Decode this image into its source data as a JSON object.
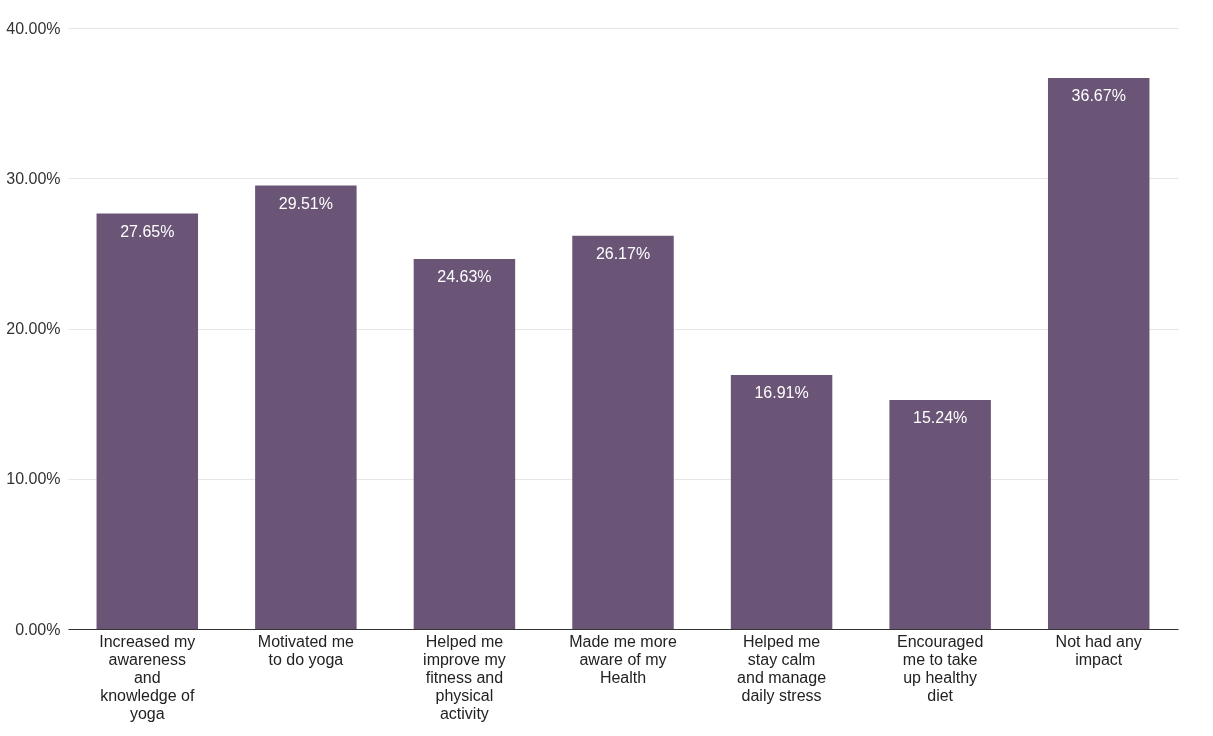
{
  "chart_data": {
    "type": "bar",
    "categories": [
      "Increased my awareness and knowledge of yoga",
      "Motivated me to do yoga",
      "Helped me improve my fitness and physical activity",
      "Made me more aware of my Health",
      "Helped me stay calm and manage daily stress",
      "Encouraged me to take up healthy diet",
      "Not had any impact"
    ],
    "values": [
      27.65,
      29.51,
      24.63,
      26.17,
      16.91,
      15.24,
      36.67
    ],
    "value_labels": [
      "27.65%",
      "29.51%",
      "24.63%",
      "26.17%",
      "16.91%",
      "15.24%",
      "36.67%"
    ],
    "color": "#6b5577",
    "ylim": [
      0,
      40
    ],
    "yticks": [
      {
        "value": 0,
        "label": "0.00%"
      },
      {
        "value": 10,
        "label": "10.00%"
      },
      {
        "value": 20,
        "label": "20.00%"
      },
      {
        "value": 30,
        "label": "30.00%"
      },
      {
        "value": 40,
        "label": "40.00%"
      }
    ],
    "grid": "y"
  }
}
